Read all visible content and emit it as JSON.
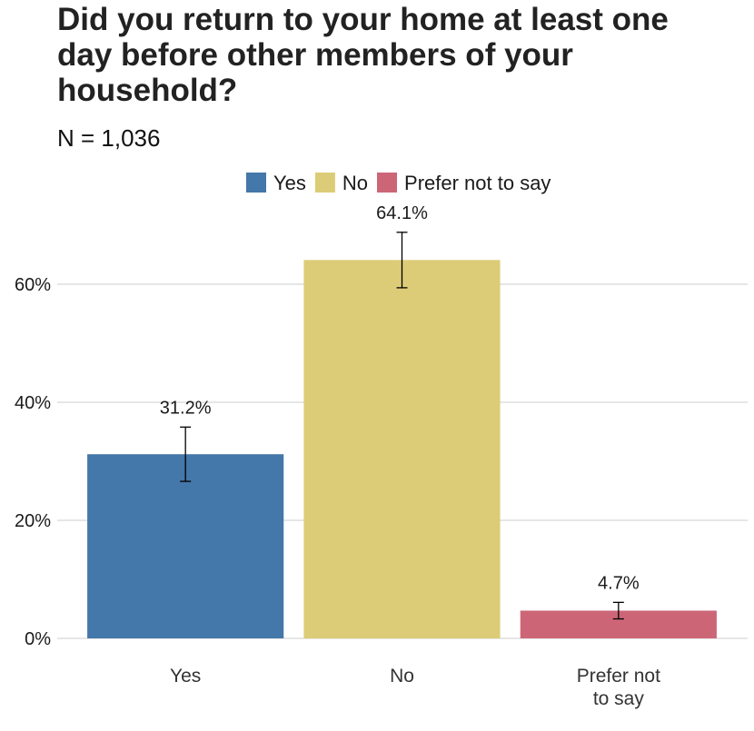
{
  "chart_data": {
    "type": "bar",
    "title": "Did you return to your home at least one day before other members of your household?",
    "subtitle": "N = 1,036",
    "categories": [
      "Yes",
      "No",
      "Prefer not to say"
    ],
    "values": [
      31.2,
      64.1,
      4.7
    ],
    "value_labels": [
      "31.2%",
      "64.1%",
      "4.7%"
    ],
    "errors": [
      4.6,
      4.7,
      1.4
    ],
    "colors": [
      "#4477aa",
      "#ddcc77",
      "#cc6677"
    ],
    "ylim": [
      0,
      73
    ],
    "yticks": [
      {
        "value": 0,
        "label": "0%"
      },
      {
        "value": 20,
        "label": "20%"
      },
      {
        "value": 40,
        "label": "40%"
      },
      {
        "value": 60,
        "label": "60%"
      }
    ],
    "grid": true,
    "legend": "top"
  }
}
